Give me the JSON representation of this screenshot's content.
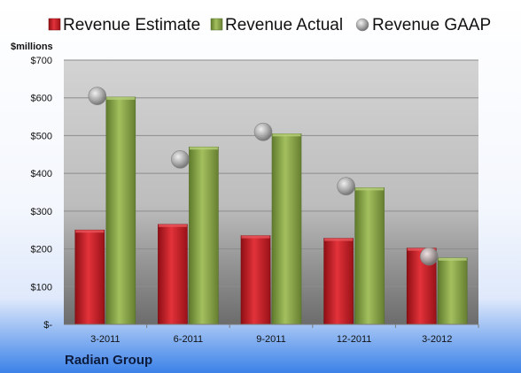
{
  "chart_data": {
    "type": "bar",
    "unit_label": "$millions",
    "company": "Radian Group",
    "categories": [
      "3-2011",
      "6-2011",
      "9-2011",
      "12-2011",
      "3-2012"
    ],
    "series": [
      {
        "name": "Revenue Estimate",
        "kind": "bar",
        "color": "#cc1f26",
        "values": [
          250,
          265,
          235,
          228,
          202
        ]
      },
      {
        "name": "Revenue Actual",
        "kind": "bar",
        "color": "#8aa64a",
        "values": [
          602,
          470,
          505,
          362,
          176
        ]
      },
      {
        "name": "Revenue GAAP",
        "kind": "marker",
        "color": "#a8a8a8",
        "values": [
          605,
          437,
          510,
          366,
          180
        ]
      }
    ],
    "y_ticks": [
      "$-",
      "$100",
      "$200",
      "$300",
      "$400",
      "$500",
      "$600",
      "$700"
    ],
    "y_tick_values": [
      0,
      100,
      200,
      300,
      400,
      500,
      600,
      700
    ],
    "ylim": [
      0,
      700
    ],
    "grid": true,
    "legend_position": "top"
  }
}
